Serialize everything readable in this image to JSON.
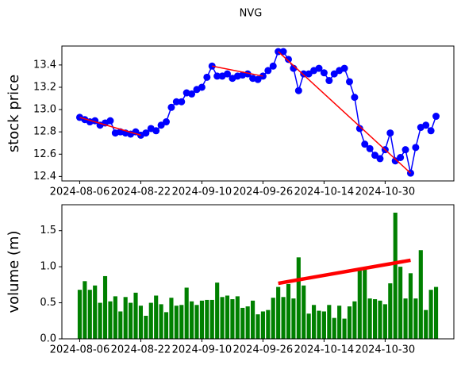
{
  "chart_data": [
    {
      "type": "line",
      "title": "NVG",
      "ylabel": "stock price",
      "ylabel_color": "#0000ff",
      "categories": [
        "2024-08-06",
        null,
        null,
        null,
        null,
        null,
        null,
        null,
        null,
        null,
        null,
        null,
        "2024-08-22",
        null,
        null,
        null,
        null,
        null,
        null,
        null,
        null,
        null,
        null,
        null,
        "2024-09-10",
        null,
        null,
        null,
        null,
        null,
        null,
        null,
        null,
        null,
        null,
        null,
        "2024-09-26",
        null,
        null,
        null,
        null,
        null,
        null,
        null,
        null,
        null,
        null,
        null,
        "2024-10-14",
        null,
        null,
        null,
        null,
        null,
        null,
        null,
        null,
        null,
        null,
        null,
        "2024-10-30",
        null,
        null,
        null,
        null,
        null,
        null,
        null,
        null,
        null,
        null
      ],
      "series": [
        {
          "color": "#0000ff",
          "values": [
            12.93,
            12.91,
            12.89,
            12.9,
            12.86,
            12.88,
            12.9,
            12.79,
            12.8,
            12.79,
            12.78,
            12.8,
            12.77,
            12.79,
            12.83,
            12.81,
            12.86,
            12.89,
            13.02,
            13.07,
            13.07,
            13.15,
            13.14,
            13.18,
            13.2,
            13.29,
            13.39,
            13.3,
            13.3,
            13.32,
            13.28,
            13.3,
            13.31,
            13.32,
            13.28,
            13.27,
            13.3,
            13.35,
            13.39,
            13.52,
            13.52,
            13.45,
            13.37,
            13.17,
            13.32,
            13.32,
            13.35,
            13.37,
            13.33,
            13.26,
            13.32,
            13.35,
            13.37,
            13.25,
            13.11,
            12.83,
            12.69,
            12.65,
            12.59,
            12.56,
            12.64,
            12.79,
            12.54,
            12.57,
            12.64,
            12.43,
            12.66,
            12.84,
            12.86,
            12.81,
            12.94
          ]
        }
      ],
      "trend_lines": [
        {
          "color": "#ff0000",
          "x": [
            0,
            12
          ],
          "y": [
            12.93,
            12.77
          ]
        },
        {
          "color": "#ff0000",
          "x": [
            26,
            36
          ],
          "y": [
            13.39,
            13.3
          ]
        },
        {
          "color": "#ff0000",
          "x": [
            39,
            65
          ],
          "y": [
            13.52,
            12.43
          ]
        }
      ],
      "xlim": [
        -3.5,
        73.5
      ],
      "ylim": [
        12.36,
        13.57
      ],
      "yticks": [
        {
          "value": 12.4,
          "label": "12.4"
        },
        {
          "value": 12.6,
          "label": "12.6"
        },
        {
          "value": 12.8,
          "label": "12.8"
        },
        {
          "value": 13.0,
          "label": "13.0"
        },
        {
          "value": 13.2,
          "label": "13.2"
        },
        {
          "value": 13.4,
          "label": "13.4"
        }
      ]
    },
    {
      "type": "bar",
      "ylabel": "volume (m)",
      "ylabel_color": "#008000",
      "categories": [
        "2024-08-06",
        null,
        null,
        null,
        null,
        null,
        null,
        null,
        null,
        null,
        null,
        null,
        "2024-08-22",
        null,
        null,
        null,
        null,
        null,
        null,
        null,
        null,
        null,
        null,
        null,
        "2024-09-10",
        null,
        null,
        null,
        null,
        null,
        null,
        null,
        null,
        null,
        null,
        null,
        "2024-09-26",
        null,
        null,
        null,
        null,
        null,
        null,
        null,
        null,
        null,
        null,
        null,
        "2024-10-14",
        null,
        null,
        null,
        null,
        null,
        null,
        null,
        null,
        null,
        null,
        null,
        "2024-10-30",
        null,
        null,
        null,
        null,
        null,
        null,
        null,
        null,
        null,
        null
      ],
      "series": [
        {
          "color": "#008000",
          "values": [
            0.68,
            0.8,
            0.68,
            0.74,
            0.5,
            0.87,
            0.52,
            0.59,
            0.38,
            0.58,
            0.5,
            0.64,
            0.46,
            0.32,
            0.5,
            0.6,
            0.48,
            0.37,
            0.57,
            0.46,
            0.47,
            0.71,
            0.52,
            0.47,
            0.53,
            0.54,
            0.54,
            0.78,
            0.58,
            0.6,
            0.55,
            0.59,
            0.43,
            0.45,
            0.53,
            0.34,
            0.38,
            0.4,
            0.57,
            0.72,
            0.58,
            0.76,
            0.56,
            1.13,
            0.74,
            0.35,
            0.47,
            0.39,
            0.38,
            0.47,
            0.29,
            0.46,
            0.28,
            0.45,
            0.52,
            0.98,
            0.99,
            0.56,
            0.55,
            0.53,
            0.48,
            0.77,
            1.75,
            1.0,
            0.56,
            0.91,
            0.56,
            1.23,
            0.4,
            0.68,
            0.72
          ]
        }
      ],
      "trend_lines": [
        {
          "color": "#ff0000",
          "x": [
            39,
            65
          ],
          "y": [
            0.77,
            1.09
          ]
        }
      ],
      "xlim": [
        -3.5,
        73.5
      ],
      "ylim": [
        0,
        1.86
      ],
      "yticks": [
        {
          "value": 0,
          "label": "0.0"
        },
        {
          "value": 0.5,
          "label": "0.5"
        },
        {
          "value": 1.0,
          "label": "1.0"
        },
        {
          "value": 1.5,
          "label": "1.5"
        }
      ]
    }
  ]
}
